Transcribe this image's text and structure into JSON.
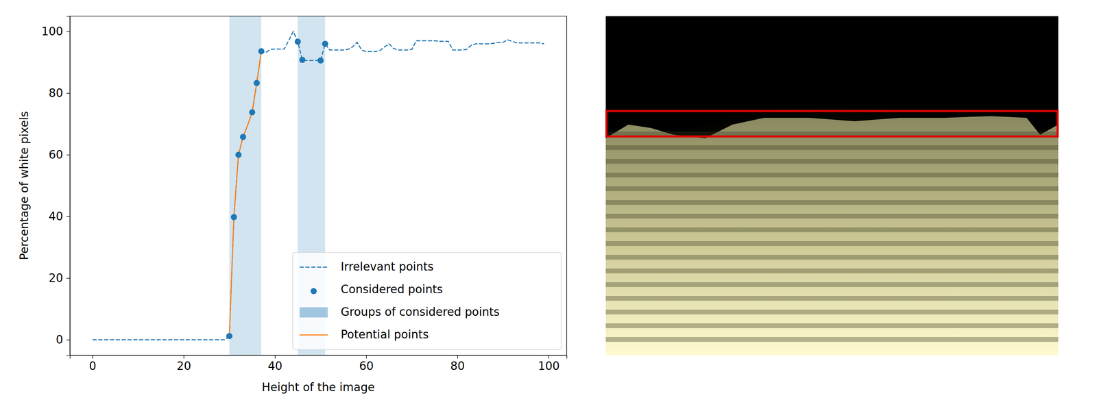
{
  "chart_data": {
    "type": "line",
    "xlabel": "Height of the image",
    "ylabel": "Percentage of white pixels",
    "xlim": [
      -4.95,
      103.95
    ],
    "ylim": [
      -5,
      105
    ],
    "xticks": [
      0,
      20,
      40,
      60,
      80,
      100
    ],
    "yticks": [
      0,
      20,
      40,
      60,
      80,
      100
    ],
    "legend": "lower right",
    "series": [
      {
        "name": "Irrelevant points",
        "type": "line",
        "line_style": "dashed",
        "color": "#1f77b4",
        "x": [
          0,
          1,
          2,
          3,
          4,
          5,
          6,
          7,
          8,
          9,
          10,
          11,
          12,
          13,
          14,
          15,
          16,
          17,
          18,
          19,
          20,
          21,
          22,
          23,
          24,
          25,
          26,
          27,
          28,
          29,
          30,
          31,
          32,
          33,
          34,
          35,
          36,
          37,
          38,
          39,
          40,
          41,
          42,
          43,
          44,
          45,
          46,
          47,
          48,
          49,
          50,
          51,
          52,
          53,
          54,
          55,
          56,
          57,
          58,
          59,
          60,
          61,
          62,
          63,
          64,
          65,
          66,
          67,
          68,
          69,
          70,
          71,
          72,
          73,
          74,
          75,
          76,
          77,
          78,
          79,
          80,
          81,
          82,
          83,
          84,
          85,
          86,
          87,
          88,
          89,
          90,
          91,
          92,
          93,
          94,
          95,
          96,
          97,
          98,
          99
        ],
        "values": [
          0,
          0,
          0,
          0,
          0,
          0,
          0,
          0,
          0,
          0,
          0,
          0,
          0,
          0,
          0,
          0,
          0,
          0,
          0,
          0,
          0,
          0,
          0,
          0,
          0,
          0,
          0,
          0,
          0,
          0,
          1.2,
          39.8,
          60,
          65.8,
          69.6,
          73.8,
          83.3,
          93.6,
          93.2,
          94.2,
          94.3,
          94.3,
          94.3,
          97,
          100,
          96.7,
          90.8,
          90.6,
          90.6,
          90.6,
          90.6,
          96,
          94,
          94,
          94,
          94,
          94.2,
          95,
          96.5,
          94,
          93.5,
          93.5,
          93.5,
          93.8,
          95,
          96,
          94.5,
          94,
          94,
          94,
          94.2,
          97,
          97,
          97,
          97,
          97,
          96.8,
          96.8,
          96.8,
          94,
          94,
          94,
          94.2,
          95.5,
          96,
          96,
          96,
          96,
          96.2,
          96.5,
          96.5,
          97.3,
          96.8,
          96.3,
          96.3,
          96.3,
          96.3,
          96.3,
          96.3,
          96
        ]
      },
      {
        "name": "Considered points",
        "type": "scatter",
        "marker": "circle",
        "color": "#1f77b4",
        "x": [
          30,
          31,
          32,
          33,
          35,
          36,
          37,
          45,
          46,
          50,
          51
        ],
        "values": [
          1.2,
          39.8,
          60,
          65.8,
          73.8,
          83.3,
          93.6,
          96.7,
          90.8,
          90.6,
          96
        ]
      },
      {
        "name": "Groups of considered points",
        "type": "span",
        "color": "#1f77b4",
        "ranges": [
          [
            30,
            37
          ],
          [
            45,
            51
          ]
        ]
      },
      {
        "name": "Potential points",
        "type": "line",
        "line_style": "solid",
        "color": "#ff7f0e",
        "x": [
          30,
          31,
          32,
          33,
          34,
          35,
          36,
          37
        ],
        "values": [
          1.2,
          39.8,
          60,
          65.8,
          69.6,
          73.8,
          83.3,
          93.6
        ]
      }
    ]
  }
}
